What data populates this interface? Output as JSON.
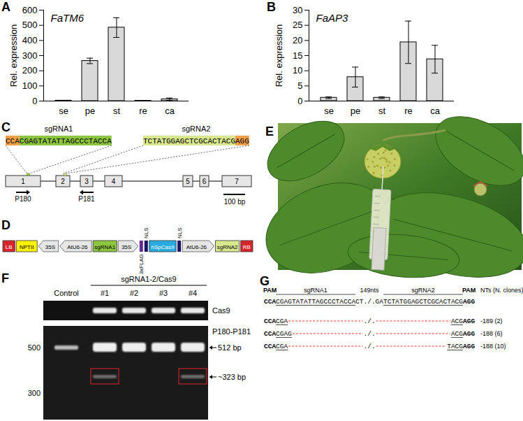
{
  "chart_data": [
    {
      "panel": "A",
      "type": "bar",
      "title": "FaTM6",
      "y_label": "Rel. expression",
      "categories": [
        "se",
        "pe",
        "st",
        "re",
        "ca"
      ],
      "values": [
        3,
        265,
        485,
        2,
        12
      ],
      "errors": [
        1,
        18,
        65,
        1,
        8
      ],
      "color": "#d9d9d9",
      "ylim": [
        0,
        600
      ],
      "yticks": [
        0,
        100,
        200,
        300,
        400,
        500,
        600
      ]
    },
    {
      "panel": "B",
      "type": "bar",
      "title": "FaAP3",
      "y_label": "Rel. expression",
      "categories": [
        "se",
        "pe",
        "st",
        "re",
        "ca"
      ],
      "values": [
        1.1,
        7.9,
        1.1,
        19.4,
        13.8
      ],
      "errors": [
        0.3,
        3.3,
        0.3,
        7,
        4.6
      ],
      "color": "#d9d9d9",
      "ylim": [
        0,
        30
      ],
      "yticks": [
        0,
        5,
        10,
        15,
        20,
        25,
        30
      ]
    }
  ],
  "gene_diagram": {
    "panel": "C",
    "sgRNAs": [
      {
        "name": "sgRNA1",
        "pam": "CCA",
        "pam_side": "left",
        "protospacer": "CGAGTATATTAGCCCTACCA",
        "color": "#8dc540",
        "exon": "1"
      },
      {
        "name": "sgRNA2",
        "pam": "AGG",
        "pam_side": "right",
        "protospacer": "TCTATGGAGCTCGCACTACG",
        "color": "#d9e88f",
        "exon": "2"
      }
    ],
    "pam_color": "#f4a04a",
    "exons": [
      "1",
      "2",
      "3",
      "4",
      "5",
      "6",
      "7"
    ],
    "primers": [
      {
        "name": "P180",
        "direction": "forward",
        "exon": "1"
      },
      {
        "name": "P181",
        "direction": "reverse",
        "exon": "3"
      }
    ],
    "scale_bar": "100 bp"
  },
  "construct": {
    "panel": "D",
    "elements": [
      {
        "label": "LB",
        "kind": "box",
        "color": "#d7262b"
      },
      {
        "label": "NPTII",
        "kind": "box",
        "color": "#fff200"
      },
      {
        "label": "35S",
        "kind": "arrow_left",
        "color": "#e6e6e6"
      },
      {
        "label": "AtU6-26",
        "kind": "arrow_left",
        "color": "#e6e6e6"
      },
      {
        "label": "sgRNA1",
        "kind": "box",
        "color": "#8dc540"
      },
      {
        "label": "35S",
        "kind": "arrow_right",
        "color": "#e6e6e6"
      },
      {
        "label": "3xFLAG",
        "kind": "tag_below",
        "color": "#662d91"
      },
      {
        "label": "NLS",
        "kind": "tag_above",
        "color": "#1b1464"
      },
      {
        "label": "hSpCas9",
        "kind": "box",
        "color": "#29abe2"
      },
      {
        "label": "NLS",
        "kind": "tag_above",
        "color": "#1b1464"
      },
      {
        "label": "AtU6-26",
        "kind": "arrow_right",
        "color": "#e6e6e6"
      },
      {
        "label": "sgRNA2",
        "kind": "box",
        "color": "#d9e88f"
      },
      {
        "label": "RB",
        "kind": "box",
        "color": "#d7262b"
      }
    ]
  },
  "photo": {
    "panel": "E"
  },
  "gel": {
    "panel": "F",
    "group_label": "sgRNA1-2/Cas9",
    "lanes": [
      "Control",
      "#1",
      "#2",
      "#3",
      "#4"
    ],
    "cas9_label": "Cas9",
    "cas9_band": [
      false,
      true,
      true,
      true,
      true
    ],
    "amplicon_label": "P180-P181",
    "band_labels": [
      "512 bp",
      "~323 bp"
    ],
    "deletion_band": [
      false,
      true,
      false,
      false,
      true
    ],
    "markers": [
      "500",
      "300"
    ]
  },
  "alignment": {
    "panel": "G",
    "header": [
      "PAM",
      "sgRNA1",
      "149nts",
      "sgRNA2",
      "PAM"
    ],
    "result_header": [
      "NTs",
      "(N. clones)"
    ],
    "reference": [
      {
        "text": "CCA",
        "style": "pam"
      },
      {
        "text": "CGAGTATATTAGCCCTACCA",
        "style": "guide"
      },
      {
        "text": "CT./.GA",
        "style": "plain"
      },
      {
        "text": "TCTATGGAGCTCGCACTACG",
        "style": "guide"
      },
      {
        "text": "AGG",
        "style": "pam"
      }
    ],
    "break": "./.",
    "deletion_color": "#e8342c",
    "mutants": [
      {
        "left": "CCACGA",
        "right": "ACGAGG",
        "nts": "-189",
        "clones": "(2)"
      },
      {
        "left": "CCACGAG",
        "right": "ACGAGG",
        "nts": "-188",
        "clones": "(6)"
      },
      {
        "left": "CCACGA",
        "right": "TACGAGG",
        "nts": "-188",
        "clones": "(10)"
      }
    ]
  }
}
